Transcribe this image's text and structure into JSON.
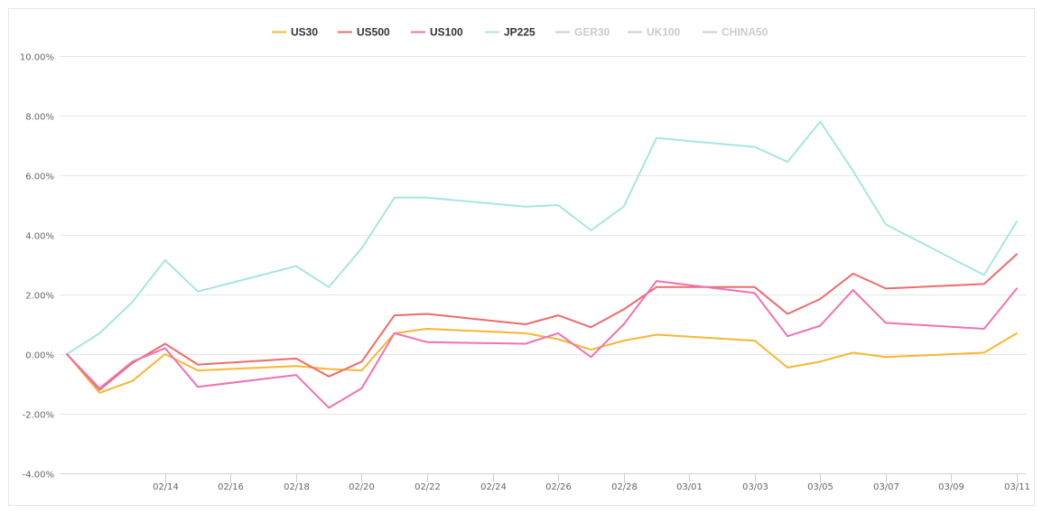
{
  "chart_data": {
    "type": "line",
    "title": "",
    "xlabel": "",
    "ylabel": "",
    "ylim": [
      -4,
      10
    ],
    "y_ticks": [
      "10.00%",
      "8.00%",
      "6.00%",
      "4.00%",
      "2.00%",
      "0.00%",
      "-2.00%",
      "-4.00%"
    ],
    "y_tick_values": [
      10,
      8,
      6,
      4,
      2,
      0,
      -2,
      -4
    ],
    "x_ticks": [
      "02/14",
      "02/16",
      "02/18",
      "02/20",
      "02/22",
      "02/24",
      "02/26",
      "02/28",
      "03/01",
      "03/03",
      "03/05",
      "03/07",
      "03/09",
      "03/11"
    ],
    "x_tick_values": [
      3,
      5,
      7,
      9,
      11,
      13,
      15,
      17,
      19,
      21,
      23,
      25,
      27,
      29
    ],
    "xlim": [
      0,
      29.5
    ],
    "grid": true,
    "legend_position": "top-center",
    "series": [
      {
        "name": "US30",
        "color": "#f7b731",
        "visible": true,
        "points": [
          [
            0,
            0.0
          ],
          [
            1,
            -1.3
          ],
          [
            2,
            -0.9
          ],
          [
            3,
            0.0
          ],
          [
            4,
            -0.55
          ],
          [
            7,
            -0.4
          ],
          [
            8,
            -0.5
          ],
          [
            9,
            -0.55
          ],
          [
            10,
            0.7
          ],
          [
            11,
            0.85
          ],
          [
            14,
            0.7
          ],
          [
            15,
            0.5
          ],
          [
            16,
            0.15
          ],
          [
            17,
            0.45
          ],
          [
            18,
            0.65
          ],
          [
            21,
            0.45
          ],
          [
            22,
            -0.45
          ],
          [
            23,
            -0.25
          ],
          [
            24,
            0.05
          ],
          [
            25,
            -0.1
          ],
          [
            28,
            0.05
          ],
          [
            29,
            0.7
          ]
        ]
      },
      {
        "name": "US500",
        "color": "#ee6b6b",
        "visible": true,
        "points": [
          [
            0,
            0.0
          ],
          [
            1,
            -1.2
          ],
          [
            2,
            -0.3
          ],
          [
            3,
            0.35
          ],
          [
            4,
            -0.35
          ],
          [
            7,
            -0.15
          ],
          [
            8,
            -0.75
          ],
          [
            9,
            -0.25
          ],
          [
            10,
            1.3
          ],
          [
            11,
            1.35
          ],
          [
            14,
            1.0
          ],
          [
            15,
            1.3
          ],
          [
            16,
            0.9
          ],
          [
            17,
            1.5
          ],
          [
            18,
            2.25
          ],
          [
            21,
            2.25
          ],
          [
            22,
            1.35
          ],
          [
            23,
            1.85
          ],
          [
            24,
            2.7
          ],
          [
            25,
            2.2
          ],
          [
            28,
            2.35
          ],
          [
            29,
            3.35
          ]
        ]
      },
      {
        "name": "US100",
        "color": "#ef72b2",
        "visible": true,
        "points": [
          [
            0,
            0.0
          ],
          [
            1,
            -1.15
          ],
          [
            2,
            -0.25
          ],
          [
            3,
            0.2
          ],
          [
            4,
            -1.1
          ],
          [
            7,
            -0.7
          ],
          [
            8,
            -1.8
          ],
          [
            9,
            -1.15
          ],
          [
            10,
            0.7
          ],
          [
            11,
            0.4
          ],
          [
            14,
            0.35
          ],
          [
            15,
            0.7
          ],
          [
            16,
            -0.1
          ],
          [
            17,
            1.0
          ],
          [
            18,
            2.45
          ],
          [
            21,
            2.05
          ],
          [
            22,
            0.6
          ],
          [
            23,
            0.95
          ],
          [
            24,
            2.15
          ],
          [
            25,
            1.05
          ],
          [
            28,
            0.85
          ],
          [
            29,
            2.2
          ]
        ]
      },
      {
        "name": "JP225",
        "color": "#a6e6e1",
        "visible": true,
        "points": [
          [
            0,
            0.0
          ],
          [
            1,
            0.7
          ],
          [
            2,
            1.75
          ],
          [
            3,
            3.15
          ],
          [
            4,
            2.1
          ],
          [
            7,
            2.95
          ],
          [
            8,
            2.25
          ],
          [
            9,
            3.55
          ],
          [
            10,
            5.25
          ],
          [
            11,
            5.25
          ],
          [
            14,
            4.95
          ],
          [
            15,
            5.0
          ],
          [
            16,
            4.15
          ],
          [
            17,
            4.95
          ],
          [
            18,
            7.25
          ],
          [
            21,
            6.95
          ],
          [
            22,
            6.45
          ],
          [
            23,
            7.8
          ],
          [
            24,
            6.15
          ],
          [
            25,
            4.35
          ],
          [
            28,
            2.65
          ],
          [
            29,
            4.45
          ]
        ]
      },
      {
        "name": "GER30",
        "color": "#cccccc",
        "visible": false,
        "points": []
      },
      {
        "name": "UK100",
        "color": "#cccccc",
        "visible": false,
        "points": []
      },
      {
        "name": "CHINA50",
        "color": "#cccccc",
        "visible": false,
        "points": []
      }
    ]
  },
  "style": {
    "grid_color": "#e6e6e6",
    "axis_color": "#c8d0df",
    "legend_text_color": "#333333",
    "legend_disabled_color": "#cccccc",
    "tick_text_color": "#666666"
  }
}
